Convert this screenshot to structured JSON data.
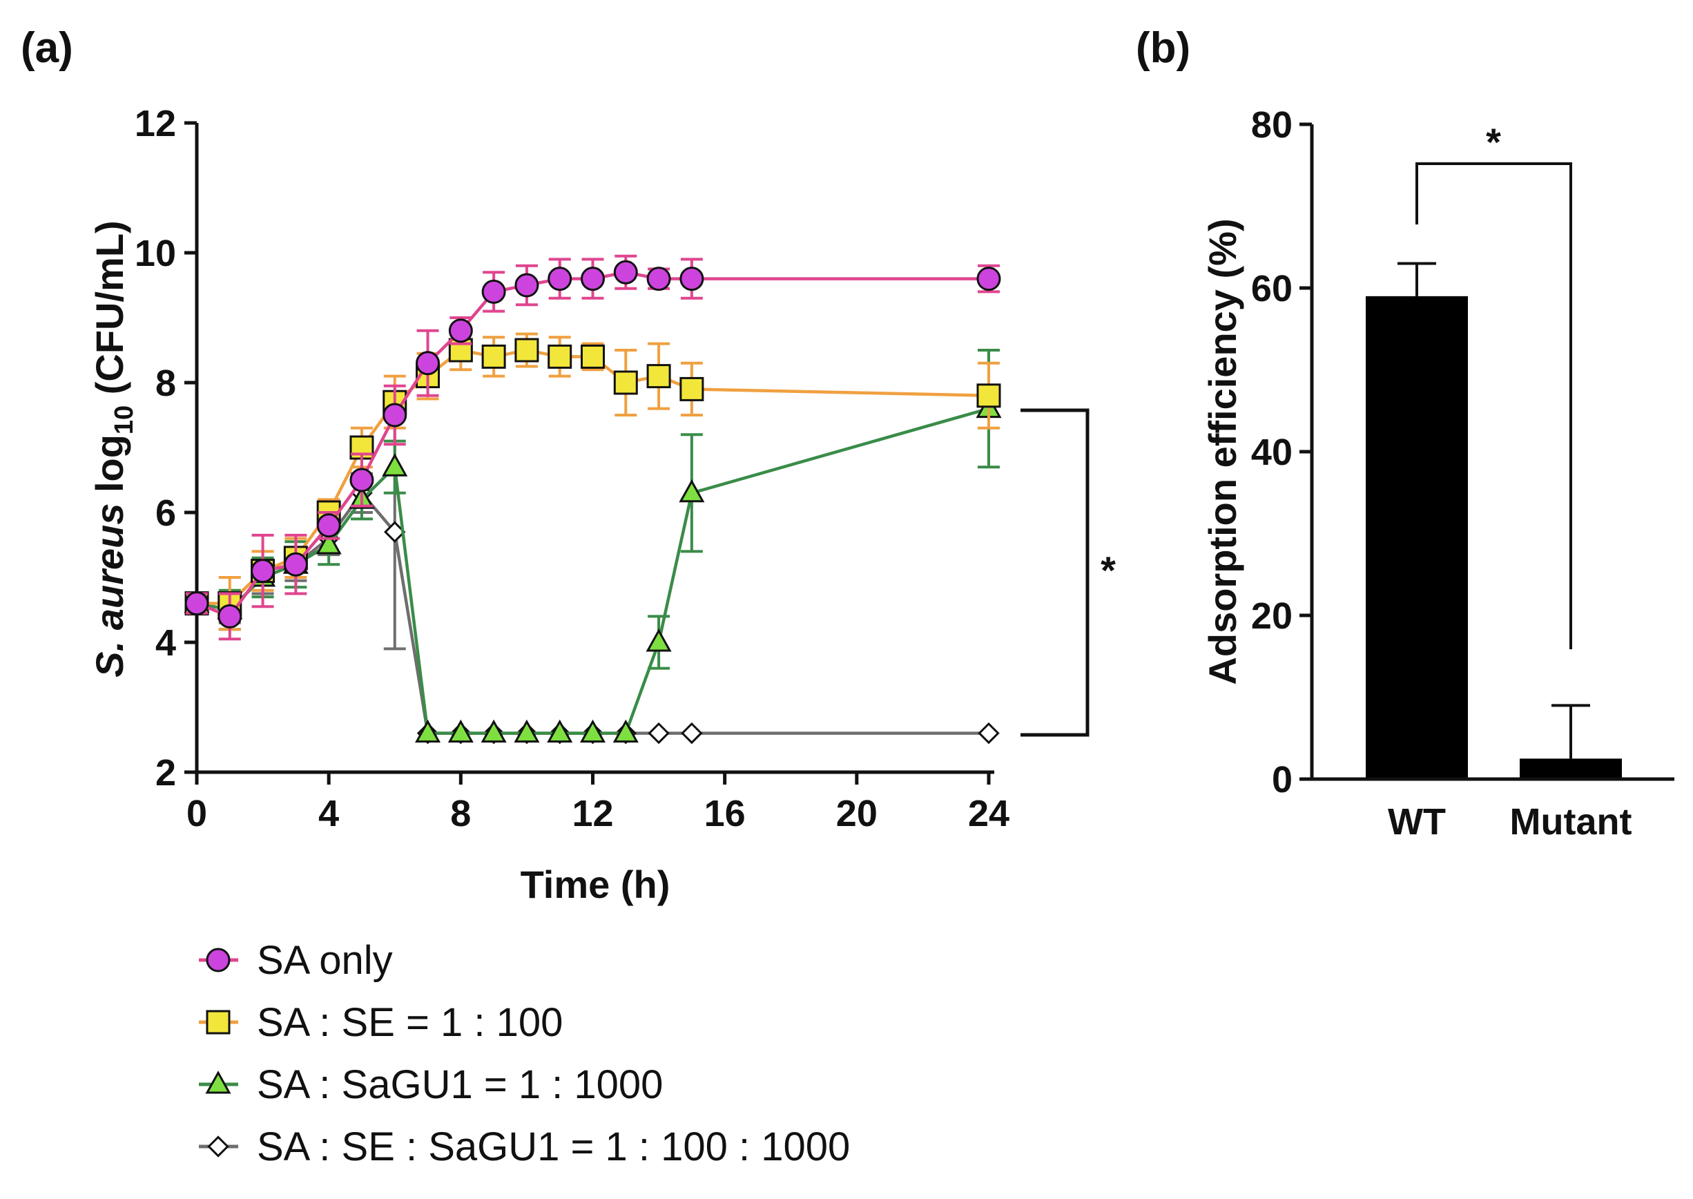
{
  "panels": {
    "a": "(a)",
    "b": "(b)"
  },
  "chart_data": [
    {
      "type": "line",
      "panel": "(a)",
      "xlabel": "Time (h)",
      "ylabel_parts": {
        "italic": "S. aureus",
        "log": " log",
        "sub": "10",
        "unit": " (CFU/mL)"
      },
      "xlim": [
        0,
        24
      ],
      "ylim": [
        2,
        12
      ],
      "xticks": [
        "0",
        "4",
        "8",
        "12",
        "16",
        "20",
        "24"
      ],
      "yticks": [
        "2",
        "4",
        "6",
        "8",
        "10",
        "12"
      ],
      "significance": "*",
      "series": [
        {
          "name": "SA only",
          "marker": "circle",
          "line_color": "#e0458f",
          "fill_color": "#cc44dd",
          "x": [
            0,
            1,
            2,
            3,
            4,
            5,
            6,
            7,
            8,
            9,
            10,
            11,
            12,
            13,
            14,
            15,
            24
          ],
          "y": [
            4.6,
            4.4,
            5.1,
            5.2,
            5.8,
            6.5,
            7.5,
            8.3,
            8.8,
            9.4,
            9.5,
            9.6,
            9.6,
            9.7,
            9.6,
            9.6,
            9.6
          ],
          "err": [
            0.15,
            0.35,
            0.55,
            0.45,
            0.2,
            0.4,
            0.45,
            0.5,
            0.2,
            0.3,
            0.3,
            0.3,
            0.3,
            0.25,
            0.15,
            0.3,
            0.2
          ]
        },
        {
          "name": "SA : SE = 1 : 100",
          "marker": "square",
          "line_color": "#f0a040",
          "fill_color": "#f2e63a",
          "x": [
            0,
            1,
            2,
            3,
            4,
            5,
            6,
            7,
            8,
            9,
            10,
            11,
            12,
            13,
            14,
            15,
            24
          ],
          "y": [
            4.6,
            4.6,
            5.1,
            5.3,
            6.0,
            7.0,
            7.7,
            8.1,
            8.5,
            8.4,
            8.5,
            8.4,
            8.4,
            8.0,
            8.1,
            7.9,
            7.8
          ],
          "err": [
            0.15,
            0.4,
            0.3,
            0.3,
            0.2,
            0.3,
            0.4,
            0.35,
            0.3,
            0.3,
            0.25,
            0.3,
            0.2,
            0.5,
            0.5,
            0.4,
            0.5
          ]
        },
        {
          "name": "SA : SaGU1 = 1 : 1000",
          "marker": "triangle",
          "line_color": "#3a8c48",
          "fill_color": "#7ee040",
          "x": [
            0,
            1,
            2,
            3,
            4,
            5,
            6,
            7,
            8,
            9,
            10,
            11,
            12,
            13,
            14,
            15,
            24
          ],
          "y": [
            4.6,
            4.5,
            5.0,
            5.2,
            5.5,
            6.2,
            6.7,
            2.6,
            2.6,
            2.6,
            2.6,
            2.6,
            2.6,
            2.6,
            4.0,
            6.3,
            7.6
          ],
          "err": [
            0.15,
            0.3,
            0.3,
            0.35,
            0.3,
            0.3,
            0.4,
            0.05,
            0.05,
            0.05,
            0.05,
            0.05,
            0.05,
            0.05,
            0.4,
            0.9,
            0.9
          ]
        },
        {
          "name": "SA : SE : SaGU1 = 1 : 100 : 1000",
          "marker": "diamond",
          "line_color": "#6e6e6e",
          "fill_color": "#ffffff",
          "x": [
            0,
            1,
            2,
            3,
            4,
            5,
            6,
            7,
            8,
            9,
            10,
            11,
            12,
            13,
            14,
            15,
            24
          ],
          "y": [
            4.6,
            4.5,
            5.0,
            5.2,
            5.6,
            6.3,
            5.7,
            2.6,
            2.6,
            2.6,
            2.6,
            2.6,
            2.6,
            2.6,
            2.6,
            2.6,
            2.6
          ],
          "err": [
            0.1,
            0.2,
            0.25,
            0.25,
            0.25,
            0.3,
            1.8,
            0.05,
            0.05,
            0.05,
            0.05,
            0.05,
            0.05,
            0.05,
            0.05,
            0.05,
            0.05
          ]
        }
      ]
    },
    {
      "type": "bar",
      "panel": "(b)",
      "categories": [
        "WT",
        "Mutant"
      ],
      "values": [
        59,
        2.5
      ],
      "errors": [
        4,
        6.5
      ],
      "ylabel": "Adsorption efficiency (%)",
      "xlabel": "",
      "ylim": [
        0,
        80
      ],
      "yticks": [
        "0",
        "20",
        "40",
        "60",
        "80"
      ],
      "significance": "*",
      "bar_color": "#000000"
    }
  ]
}
